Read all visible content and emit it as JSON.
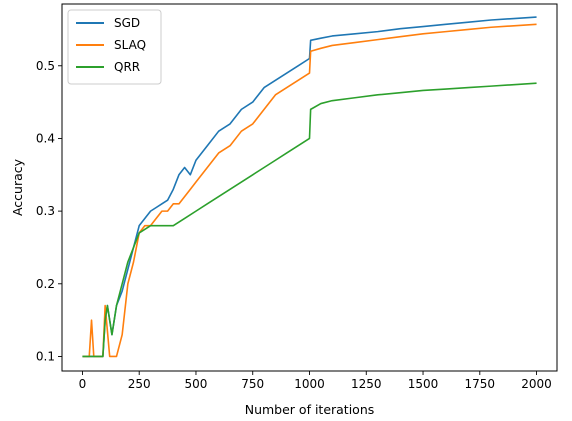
{
  "chart_data": {
    "type": "line",
    "xlabel": "Number of iterations",
    "ylabel": "Accuracy",
    "xlim": [
      -90,
      2090
    ],
    "ylim": [
      0.08,
      0.585
    ],
    "x_ticks": [
      0,
      250,
      500,
      750,
      1000,
      1250,
      1500,
      1750,
      2000
    ],
    "y_ticks": [
      0.1,
      0.2,
      0.3,
      0.4,
      0.5
    ],
    "legend_position": "top-left",
    "grid": false,
    "series": [
      {
        "name": "SGD",
        "color": "#1f77b4",
        "x": [
          0,
          50,
          90,
          100,
          110,
          130,
          150,
          175,
          200,
          225,
          250,
          275,
          300,
          325,
          350,
          375,
          400,
          425,
          450,
          475,
          500,
          550,
          600,
          650,
          700,
          750,
          800,
          850,
          900,
          950,
          1000,
          1005,
          1050,
          1100,
          1200,
          1300,
          1400,
          1500,
          1600,
          1700,
          1800,
          1900,
          2000
        ],
        "y": [
          0.1,
          0.1,
          0.1,
          0.15,
          0.17,
          0.13,
          0.17,
          0.19,
          0.22,
          0.25,
          0.28,
          0.29,
          0.3,
          0.305,
          0.31,
          0.315,
          0.33,
          0.35,
          0.36,
          0.35,
          0.37,
          0.39,
          0.41,
          0.42,
          0.44,
          0.45,
          0.47,
          0.48,
          0.49,
          0.5,
          0.51,
          0.535,
          0.538,
          0.541,
          0.544,
          0.547,
          0.551,
          0.554,
          0.557,
          0.56,
          0.563,
          0.565,
          0.567
        ]
      },
      {
        "name": "SLAQ",
        "color": "#ff7f0e",
        "x": [
          0,
          30,
          40,
          50,
          90,
          100,
          120,
          150,
          175,
          200,
          225,
          250,
          275,
          300,
          325,
          350,
          375,
          400,
          425,
          450,
          475,
          500,
          550,
          600,
          650,
          700,
          750,
          800,
          850,
          900,
          950,
          1000,
          1005,
          1050,
          1100,
          1200,
          1300,
          1400,
          1500,
          1600,
          1700,
          1800,
          1900,
          2000
        ],
        "y": [
          0.1,
          0.1,
          0.15,
          0.1,
          0.1,
          0.17,
          0.1,
          0.1,
          0.13,
          0.2,
          0.23,
          0.27,
          0.28,
          0.28,
          0.29,
          0.3,
          0.3,
          0.31,
          0.31,
          0.32,
          0.33,
          0.34,
          0.36,
          0.38,
          0.39,
          0.41,
          0.42,
          0.44,
          0.46,
          0.47,
          0.48,
          0.49,
          0.52,
          0.524,
          0.528,
          0.532,
          0.536,
          0.54,
          0.544,
          0.547,
          0.55,
          0.553,
          0.555,
          0.557
        ]
      },
      {
        "name": "QRR",
        "color": "#2ca02c",
        "x": [
          0,
          50,
          90,
          100,
          110,
          130,
          150,
          175,
          200,
          250,
          300,
          350,
          400,
          450,
          500,
          550,
          600,
          650,
          700,
          750,
          800,
          850,
          900,
          950,
          1000,
          1005,
          1050,
          1100,
          1200,
          1300,
          1400,
          1500,
          1600,
          1700,
          1800,
          1900,
          2000
        ],
        "y": [
          0.1,
          0.1,
          0.1,
          0.15,
          0.17,
          0.13,
          0.17,
          0.2,
          0.23,
          0.27,
          0.28,
          0.28,
          0.28,
          0.29,
          0.3,
          0.31,
          0.32,
          0.33,
          0.34,
          0.35,
          0.36,
          0.37,
          0.38,
          0.39,
          0.4,
          0.44,
          0.448,
          0.452,
          0.456,
          0.46,
          0.463,
          0.466,
          0.468,
          0.47,
          0.472,
          0.474,
          0.476
        ]
      }
    ]
  }
}
